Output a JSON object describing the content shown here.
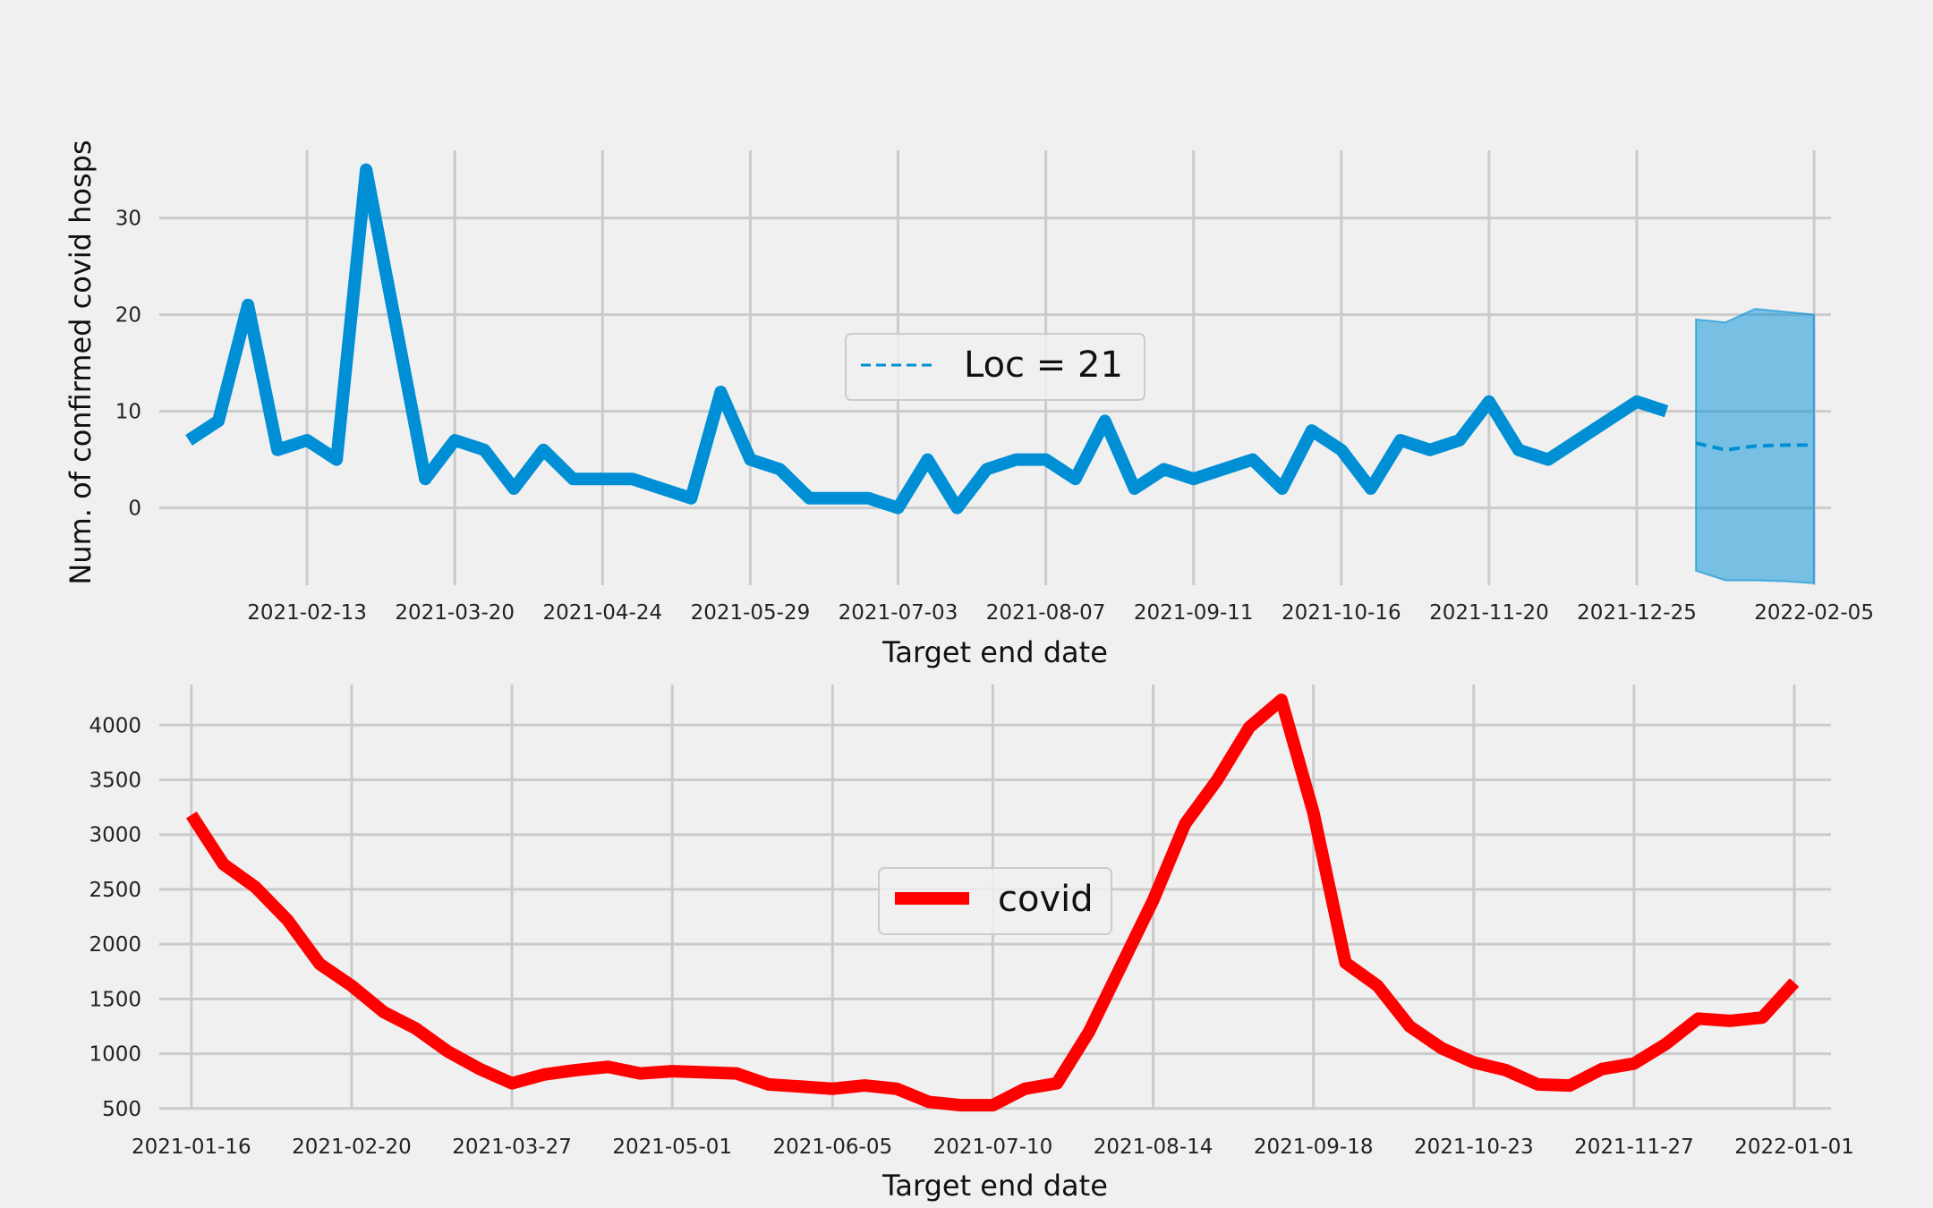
{
  "chart_data": [
    {
      "type": "line",
      "xlabel": "Target end date",
      "ylabel": "Num. of confirmed covid hosps",
      "x_range": [
        "2021-01-09",
        "2022-02-09"
      ],
      "ylim": [
        -8,
        37
      ],
      "grid": true,
      "legend": {
        "placement": "center",
        "entries": [
          "Loc = 21"
        ]
      },
      "x_ticks": [
        "2021-02-13",
        "2021-03-20",
        "2021-04-24",
        "2021-05-29",
        "2021-07-03",
        "2021-08-07",
        "2021-09-11",
        "2021-10-16",
        "2021-11-20",
        "2021-12-25",
        "2022-02-05"
      ],
      "y_ticks": [
        0,
        10,
        20,
        30
      ],
      "series": [
        {
          "color": "#008fd5",
          "style": "solid",
          "x": [
            "2021-01-16",
            "2021-01-23",
            "2021-01-30",
            "2021-02-06",
            "2021-02-13",
            "2021-02-20",
            "2021-02-27",
            "2021-03-06",
            "2021-03-13",
            "2021-03-20",
            "2021-03-27",
            "2021-04-03",
            "2021-04-10",
            "2021-04-17",
            "2021-04-24",
            "2021-05-01",
            "2021-05-08",
            "2021-05-15",
            "2021-05-22",
            "2021-05-29",
            "2021-06-05",
            "2021-06-12",
            "2021-06-19",
            "2021-06-26",
            "2021-07-03",
            "2021-07-10",
            "2021-07-17",
            "2021-07-24",
            "2021-07-31",
            "2021-08-07",
            "2021-08-14",
            "2021-08-21",
            "2021-08-28",
            "2021-09-04",
            "2021-09-11",
            "2021-09-18",
            "2021-09-25",
            "2021-10-02",
            "2021-10-09",
            "2021-10-16",
            "2021-10-23",
            "2021-10-30",
            "2021-11-06",
            "2021-11-13",
            "2021-11-20",
            "2021-11-27",
            "2021-12-04",
            "2021-12-11",
            "2021-12-18",
            "2021-12-25",
            "2022-01-01"
          ],
          "values": [
            7,
            9,
            21,
            6,
            7,
            5,
            35,
            19,
            3,
            7,
            6,
            2,
            6,
            3,
            3,
            3,
            2,
            1,
            12,
            5,
            4,
            1,
            1,
            1,
            0,
            5,
            0,
            4,
            5,
            5,
            3,
            9,
            2,
            4,
            3,
            4,
            5,
            2,
            8,
            6,
            2,
            7,
            6,
            7,
            11,
            6,
            5,
            7,
            9,
            11,
            10
          ]
        },
        {
          "name": "Loc = 21",
          "color": "#008fd5",
          "style": "dashed",
          "x": [
            "2022-01-08",
            "2022-01-15",
            "2022-01-22",
            "2022-01-29",
            "2022-02-05"
          ],
          "values": [
            6.7,
            6.0,
            6.4,
            6.5,
            6.5
          ]
        }
      ],
      "band": {
        "color": "#008fd5",
        "x": [
          "2022-01-08",
          "2022-01-15",
          "2022-01-22",
          "2022-01-29",
          "2022-02-05"
        ],
        "lower": [
          -6.5,
          -7.5,
          -7.5,
          -7.6,
          -7.8
        ],
        "upper": [
          19.5,
          19.2,
          20.6,
          20.3,
          20.0
        ]
      }
    },
    {
      "type": "line",
      "xlabel": "Target end date",
      "ylabel": "",
      "x_range": [
        "2021-01-09",
        "2022-01-09"
      ],
      "ylim": [
        490,
        4370
      ],
      "grid": true,
      "legend": {
        "placement": "center",
        "entries": [
          "covid"
        ]
      },
      "x_ticks": [
        "2021-01-16",
        "2021-02-20",
        "2021-03-27",
        "2021-05-01",
        "2021-06-05",
        "2021-07-10",
        "2021-08-14",
        "2021-09-18",
        "2021-10-23",
        "2021-11-27",
        "2022-01-01"
      ],
      "y_ticks": [
        500,
        1000,
        1500,
        2000,
        2500,
        3000,
        3500,
        4000
      ],
      "series": [
        {
          "name": "covid",
          "color": "#ff0000",
          "style": "solid",
          "x": [
            "2021-01-16",
            "2021-01-23",
            "2021-01-30",
            "2021-02-06",
            "2021-02-13",
            "2021-02-20",
            "2021-02-27",
            "2021-03-06",
            "2021-03-13",
            "2021-03-20",
            "2021-03-27",
            "2021-04-03",
            "2021-04-10",
            "2021-04-17",
            "2021-04-24",
            "2021-05-01",
            "2021-05-08",
            "2021-05-15",
            "2021-05-22",
            "2021-05-29",
            "2021-06-05",
            "2021-06-12",
            "2021-06-19",
            "2021-06-26",
            "2021-07-03",
            "2021-07-10",
            "2021-07-17",
            "2021-07-24",
            "2021-07-31",
            "2021-08-07",
            "2021-08-14",
            "2021-08-21",
            "2021-08-28",
            "2021-09-04",
            "2021-09-11",
            "2021-09-18",
            "2021-09-25",
            "2021-10-02",
            "2021-10-09",
            "2021-10-16",
            "2021-10-23",
            "2021-10-30",
            "2021-11-06",
            "2021-11-13",
            "2021-11-20",
            "2021-11-27",
            "2021-12-04",
            "2021-12-11",
            "2021-12-18",
            "2021-12-25",
            "2022-01-01"
          ],
          "values": [
            3180,
            2730,
            2520,
            2220,
            1820,
            1620,
            1380,
            1230,
            1020,
            860,
            730,
            810,
            850,
            880,
            820,
            840,
            830,
            820,
            720,
            700,
            680,
            710,
            680,
            560,
            530,
            530,
            680,
            730,
            1200,
            1800,
            2400,
            3100,
            3500,
            3980,
            4230,
            3200,
            1830,
            1620,
            1250,
            1050,
            920,
            850,
            720,
            710,
            860,
            910,
            1090,
            1320,
            1300,
            1330,
            1650
          ]
        }
      ]
    }
  ]
}
